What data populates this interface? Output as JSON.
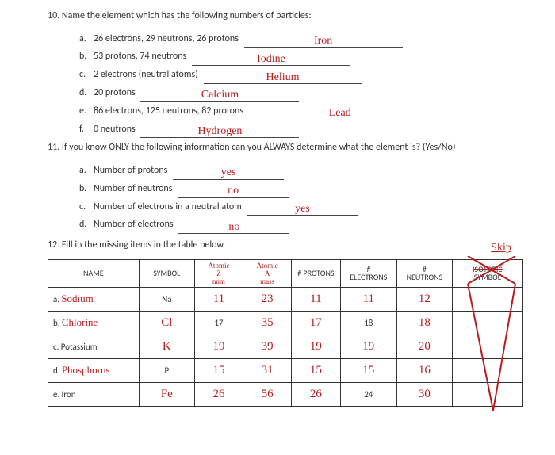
{
  "q10": {
    "prompt": "10.  Name the element which has the following numbers of particles:",
    "items": [
      {
        "label": "a.",
        "text": "26 electrons, 29 neutrons, 26 protons",
        "answer": "Iron",
        "cls": "wide"
      },
      {
        "label": "b.",
        "text": "53 protons, 74 neutrons",
        "answer": "Iodine",
        "cls": "wide"
      },
      {
        "label": "c.",
        "text": "2 electrons (neutral atoms)",
        "answer": "Helium",
        "cls": "wide"
      },
      {
        "label": "d.",
        "text": "20 protons",
        "answer": "Calcium",
        "cls": "wide"
      },
      {
        "label": "e.",
        "text": "86 electrons, 125 neutrons, 82 protons",
        "answer": "Lead",
        "cls": "xwide"
      },
      {
        "label": "f.",
        "text": "0 neutrons",
        "answer": "Hydrogen",
        "cls": "wide"
      }
    ]
  },
  "q11": {
    "prompt": "11.  If you know ONLY the following information can you ALWAYS determine what the element is? (Yes/No)",
    "items": [
      {
        "label": "a.",
        "text": "Number of protons",
        "answer": "yes"
      },
      {
        "label": "b.",
        "text": "Number of neutrons",
        "answer": "no"
      },
      {
        "label": "c.",
        "text": "Number of electrons in a neutral atom",
        "answer": "yes"
      },
      {
        "label": "d.",
        "text": "Number of electrons",
        "answer": "no"
      }
    ]
  },
  "q12": {
    "prompt": "12.  Fill in the missing items in the table below.",
    "headers": {
      "name": "NAME",
      "symbol": "SYMBOL",
      "z_top": "Atomic",
      "z_mid": "Z",
      "z_bot": "num",
      "a_top": "Atomic",
      "a_mid": "A",
      "a_bot": "mass",
      "protons": "# PROTONS",
      "electrons_top": "#",
      "electrons_bot": "ELECTRONS",
      "neutrons_top": "#",
      "neutrons_bot": "NEUTRONS",
      "iso_top": "ISOTOPIC",
      "iso_bot": "SYMBOL"
    },
    "rows": [
      {
        "label": "a.",
        "name": "Sodium",
        "name_hand": true,
        "sym": "Na",
        "sym_hand": false,
        "z": "11",
        "z_hand": true,
        "a": "23",
        "a_hand": true,
        "p": "11",
        "p_hand": true,
        "e": "11",
        "e_hand": true,
        "n": "12",
        "n_hand": true
      },
      {
        "label": "b.",
        "name": "Chlorine",
        "name_hand": true,
        "sym": "Cl",
        "sym_hand": true,
        "z": "17",
        "z_hand": false,
        "a": "35",
        "a_hand": true,
        "p": "17",
        "p_hand": true,
        "e": "18",
        "e_hand": false,
        "n": "18",
        "n_hand": true
      },
      {
        "label": "c.",
        "name": "Potassium",
        "name_hand": false,
        "sym": "K",
        "sym_hand": true,
        "z": "19",
        "z_hand": true,
        "a": "39",
        "a_hand": true,
        "p": "19",
        "p_hand": true,
        "e": "19",
        "e_hand": true,
        "n": "20",
        "n_hand": true
      },
      {
        "label": "d.",
        "name": "Phosphorus",
        "name_hand": true,
        "sym": "P",
        "sym_hand": false,
        "z": "15",
        "z_hand": true,
        "a": "31",
        "a_hand": true,
        "p": "15",
        "p_hand": true,
        "e": "15",
        "e_hand": true,
        "n": "16",
        "n_hand": true
      },
      {
        "label": "e.",
        "name": "Iron",
        "name_hand": false,
        "sym": "Fe",
        "sym_hand": true,
        "z": "26",
        "z_hand": true,
        "a": "56",
        "a_hand": true,
        "p": "26",
        "p_hand": true,
        "e": "24",
        "e_hand": false,
        "n": "30",
        "n_hand": true
      }
    ],
    "skip_label": "Skip"
  },
  "colors": {
    "handwriting": "#b81c1c",
    "printed": "#333333",
    "border": "#333333",
    "background": "#ffffff"
  }
}
